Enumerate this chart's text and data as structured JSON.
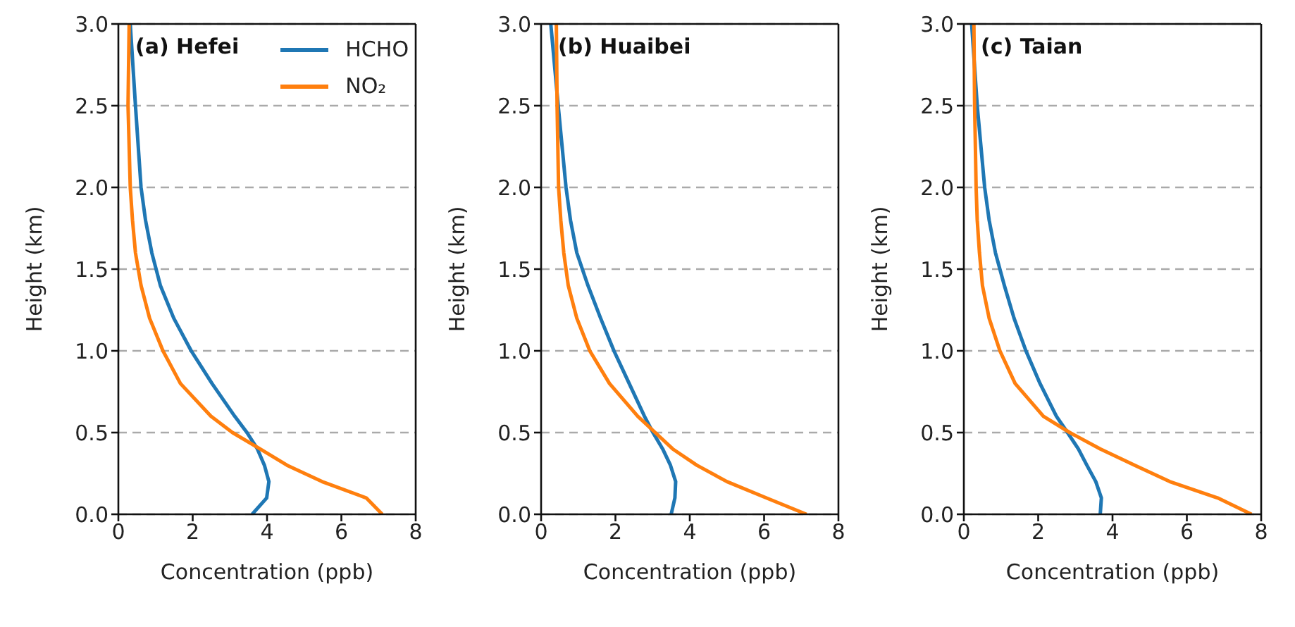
{
  "chart_data": [
    {
      "type": "line",
      "title": "(a)  Hefei",
      "xlabel": "Concentration (ppb)",
      "ylabel": "Height (km)",
      "xlim": [
        0,
        8
      ],
      "xticks": [
        0,
        2,
        4,
        6,
        8
      ],
      "ylim": [
        0,
        3
      ],
      "yticks": [
        {
          "value": 0,
          "label": "0.0"
        },
        0.5,
        {
          "value": 1,
          "label": "1.0"
        },
        1.5,
        {
          "value": 2,
          "label": "2.0"
        },
        2.5,
        {
          "value": 3,
          "label": "3.0"
        }
      ],
      "grid": "y",
      "legend": "top right",
      "line_style": "solid",
      "marker": "none",
      "series": [
        {
          "name": "HCHO",
          "color": "#1f77b4",
          "x": [
            3.6,
            3.99,
            4.05,
            3.93,
            3.74,
            3.46,
            3.13,
            2.52,
            1.96,
            1.49,
            1.13,
            0.9,
            0.73,
            0.61,
            0.46,
            0.32
          ],
          "values": [
            0,
            0.1,
            0.2,
            0.3,
            0.4,
            0.5,
            0.6,
            0.8,
            1.0,
            1.2,
            1.4,
            1.6,
            1.8,
            2.0,
            2.5,
            3.0
          ]
        },
        {
          "name": "NO₂",
          "color": "#ff7f0e",
          "x": [
            7.1,
            6.67,
            5.48,
            4.54,
            3.81,
            3.07,
            2.49,
            1.67,
            1.2,
            0.84,
            0.61,
            0.46,
            0.38,
            0.32,
            0.26,
            0.29
          ],
          "values": [
            0,
            0.1,
            0.2,
            0.3,
            0.4,
            0.5,
            0.6,
            0.8,
            1.0,
            1.2,
            1.4,
            1.6,
            1.8,
            2.0,
            2.5,
            3.0
          ]
        }
      ]
    },
    {
      "type": "line",
      "title": "(b)  Huaibei",
      "xlabel": "Concentration (ppb)",
      "ylabel": "Height (km)",
      "xlim": [
        0,
        8
      ],
      "xticks": [
        0,
        2,
        4,
        6,
        8
      ],
      "ylim": [
        0,
        3
      ],
      "yticks": [
        {
          "value": 0,
          "label": "0.0"
        },
        0.5,
        {
          "value": 1,
          "label": "1.0"
        },
        1.5,
        {
          "value": 2,
          "label": "2.0"
        },
        2.5,
        {
          "value": 3,
          "label": "3.0"
        }
      ],
      "grid": "y",
      "line_style": "solid",
      "marker": "none",
      "series": [
        {
          "color": "#1f77b4",
          "x": [
            3.5,
            3.6,
            3.62,
            3.48,
            3.27,
            3.01,
            2.78,
            2.37,
            1.96,
            1.6,
            1.26,
            0.96,
            0.79,
            0.67,
            0.46,
            0.26
          ],
          "values": [
            0,
            0.1,
            0.2,
            0.3,
            0.4,
            0.5,
            0.6,
            0.8,
            1.0,
            1.2,
            1.4,
            1.6,
            1.8,
            2.0,
            2.5,
            3.0
          ]
        },
        {
          "color": "#ff7f0e",
          "x": [
            7.14,
            6.06,
            5.0,
            4.19,
            3.54,
            3.07,
            2.6,
            1.84,
            1.31,
            0.96,
            0.73,
            0.61,
            0.53,
            0.47,
            0.43,
            0.41
          ],
          "values": [
            0,
            0.1,
            0.2,
            0.3,
            0.4,
            0.5,
            0.6,
            0.8,
            1.0,
            1.2,
            1.4,
            1.6,
            1.8,
            2.0,
            2.5,
            3.0
          ]
        }
      ]
    },
    {
      "type": "line",
      "title": "(c)  Taian",
      "xlabel": "Concentration (ppb)",
      "ylabel": "Height (km)",
      "xlim": [
        0,
        8
      ],
      "xticks": [
        0,
        2,
        4,
        6,
        8
      ],
      "ylim": [
        0,
        3
      ],
      "yticks": [
        {
          "value": 0,
          "label": "0.0"
        },
        0.5,
        {
          "value": 1,
          "label": "1.0"
        },
        1.5,
        {
          "value": 2,
          "label": "2.0"
        },
        2.5,
        {
          "value": 3,
          "label": "3.0"
        }
      ],
      "grid": "y",
      "line_style": "solid",
      "marker": "none",
      "series": [
        {
          "color": "#1f77b4",
          "x": [
            3.67,
            3.7,
            3.55,
            3.31,
            3.08,
            2.79,
            2.49,
            2.05,
            1.67,
            1.35,
            1.09,
            0.85,
            0.68,
            0.56,
            0.36,
            0.21
          ],
          "values": [
            0,
            0.1,
            0.2,
            0.3,
            0.4,
            0.5,
            0.6,
            0.8,
            1.0,
            1.2,
            1.4,
            1.6,
            1.8,
            2.0,
            2.5,
            3.0
          ]
        },
        {
          "color": "#ff7f0e",
          "x": [
            7.74,
            6.83,
            5.54,
            4.6,
            3.67,
            2.85,
            2.14,
            1.38,
            0.97,
            0.68,
            0.5,
            0.42,
            0.36,
            0.33,
            0.29,
            0.27
          ],
          "values": [
            0,
            0.1,
            0.2,
            0.3,
            0.4,
            0.5,
            0.6,
            0.8,
            1.0,
            1.2,
            1.4,
            1.6,
            1.8,
            2.0,
            2.5,
            3.0
          ]
        }
      ]
    }
  ]
}
